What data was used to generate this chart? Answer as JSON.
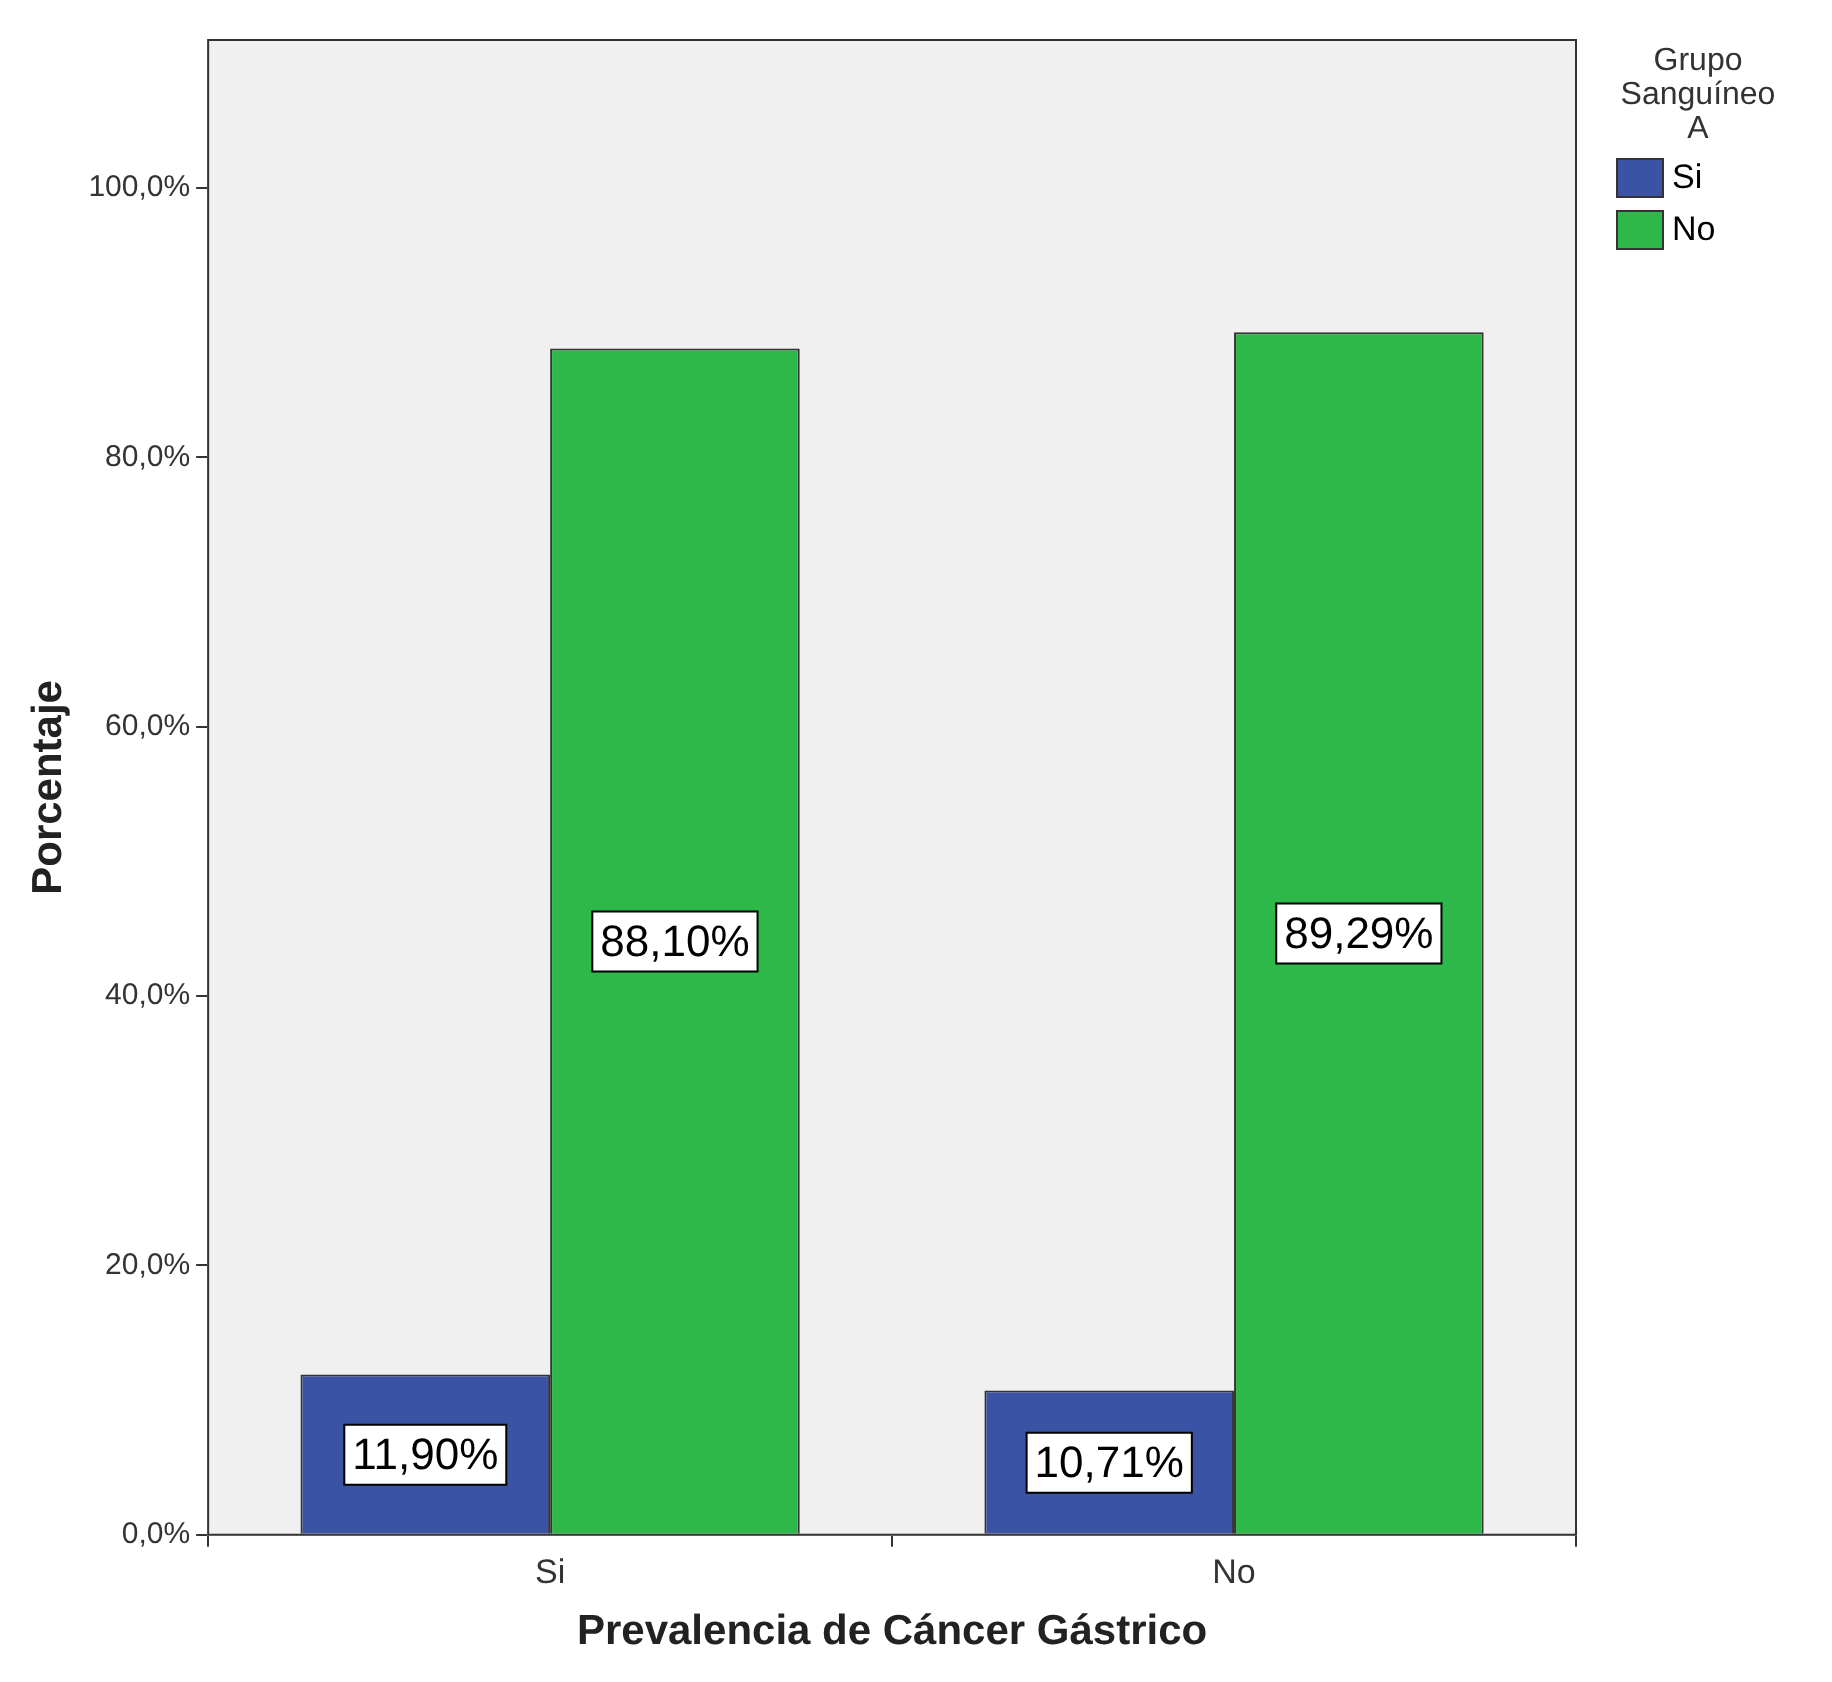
{
  "chart_data": {
    "type": "bar",
    "xlabel": "Prevalencia de Cáncer Gástrico",
    "ylabel": "Porcentaje",
    "legend_title": "Grupo Sanguíneo A",
    "categories": [
      "Si",
      "No"
    ],
    "series": [
      {
        "name": "Si",
        "color": "#3a53a4",
        "values": [
          11.9,
          10.71
        ],
        "value_labels": [
          "11,90%",
          "10,71%"
        ]
      },
      {
        "name": "No",
        "color": "#2eb84a",
        "values": [
          88.1,
          89.29
        ],
        "value_labels": [
          "88,10%",
          "89,29%"
        ]
      }
    ],
    "ylim": [
      0,
      111
    ],
    "yticks": [
      {
        "value": 0,
        "label": "0,0%"
      },
      {
        "value": 20,
        "label": "20,0%"
      },
      {
        "value": 40,
        "label": "40,0%"
      },
      {
        "value": 60,
        "label": "60,0%"
      },
      {
        "value": 80,
        "label": "80,0%"
      },
      {
        "value": 100,
        "label": "100,0%"
      }
    ],
    "grid": false,
    "legend": "top right"
  }
}
